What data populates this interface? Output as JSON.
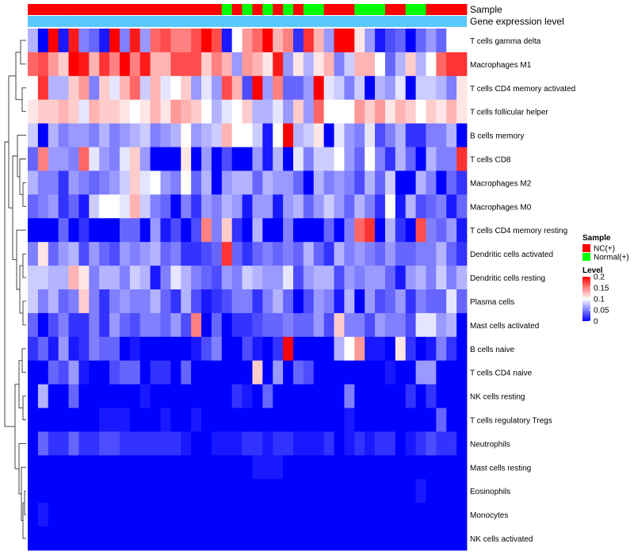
{
  "chart_data": {
    "type": "heatmap",
    "title": "",
    "annotation_tracks": [
      {
        "label": "Sample",
        "values": [
          "NC(+)",
          "NC(+)",
          "NC(+)",
          "NC(+)",
          "NC(+)",
          "NC(+)",
          "NC(+)",
          "NC(+)",
          "NC(+)",
          "NC(+)",
          "NC(+)",
          "NC(+)",
          "NC(+)",
          "NC(+)",
          "NC(+)",
          "NC(+)",
          "NC(+)",
          "NC(+)",
          "NC(+)",
          "Normal(+)",
          "NC(+)",
          "Normal(+)",
          "NC(+)",
          "Normal(+)",
          "NC(+)",
          "Normal(+)",
          "NC(+)",
          "Normal(+)",
          "Normal(+)",
          "NC(+)",
          "NC(+)",
          "NC(+)",
          "Normal(+)",
          "Normal(+)",
          "Normal(+)",
          "NC(+)",
          "NC(+)",
          "Normal(+)",
          "Normal(+)",
          "NC(+)",
          "NC(+)",
          "NC(+)",
          "NC(+)"
        ]
      },
      {
        "label": "Gene expression level",
        "values": "uniform"
      }
    ],
    "rows": [
      "T cells gamma delta",
      "Macrophages M1",
      "T cells CD4 memory activated",
      "T cells follicular helper",
      "B cells memory",
      "T cells CD8",
      "Macrophages M2",
      "Macrophages M0",
      "T cells CD4 memory resting",
      "Dendritic cells activated",
      "Dendritic cells resting",
      "Plasma cells",
      "Mast cells activated",
      "B cells naive",
      "T cells CD4 naive",
      "NK cells resting",
      "T cells regulatory  Tregs",
      "Neutrophils",
      "Mast cells resting",
      "Eosinophils",
      "Monocytes",
      "NK cells activated"
    ],
    "n_columns": 43,
    "values": [
      [
        0.07,
        0.0,
        0.2,
        0.01,
        0.19,
        0.05,
        0.04,
        0.01,
        0.2,
        0.05,
        0.19,
        0.06,
        0.16,
        0.17,
        0.15,
        0.15,
        0.17,
        0.2,
        0.17,
        0.01,
        0.1,
        0.14,
        0.16,
        0.2,
        0.13,
        0.15,
        0.02,
        0.18,
        0.13,
        0.06,
        0.2,
        0.2,
        0.11,
        0.06,
        0.01,
        0.03,
        0.04,
        0.0,
        0.04,
        0.06,
        0.04,
        0.1,
        0.1
      ],
      [
        0.16,
        0.17,
        0.14,
        0.12,
        0.2,
        0.19,
        0.13,
        0.18,
        0.15,
        0.2,
        0.15,
        0.19,
        0.13,
        0.13,
        0.17,
        0.17,
        0.17,
        0.12,
        0.15,
        0.13,
        0.06,
        0.14,
        0.13,
        0.11,
        0.19,
        0.06,
        0.11,
        0.07,
        0.11,
        0.13,
        0.05,
        0.08,
        0.13,
        0.13,
        0.1,
        0.04,
        0.07,
        0.12,
        0.07,
        0.1,
        0.16,
        0.18,
        0.18
      ],
      [
        0.1,
        0.18,
        0.07,
        0.07,
        0.12,
        0.14,
        0.05,
        0.12,
        0.09,
        0.13,
        0.16,
        0.08,
        0.13,
        0.09,
        0.1,
        0.12,
        0.06,
        0.09,
        0.06,
        0.17,
        0.13,
        0.03,
        0.2,
        0.06,
        0.15,
        0.04,
        0.04,
        0.06,
        0.2,
        0.09,
        0.08,
        0.05,
        0.08,
        0.0,
        0.07,
        0.06,
        0.09,
        0.0,
        0.08,
        0.08,
        0.07,
        0.05,
        0.11
      ],
      [
        0.11,
        0.12,
        0.12,
        0.13,
        0.12,
        0.09,
        0.13,
        0.12,
        0.12,
        0.11,
        0.1,
        0.11,
        0.13,
        0.11,
        0.14,
        0.13,
        0.12,
        0.1,
        0.07,
        0.09,
        0.1,
        0.12,
        0.07,
        0.07,
        0.09,
        0.06,
        0.12,
        0.06,
        0.16,
        0.1,
        0.1,
        0.1,
        0.14,
        0.12,
        0.14,
        0.11,
        0.13,
        0.12,
        0.1,
        0.12,
        0.11,
        0.13,
        0.11
      ],
      [
        0.08,
        0.0,
        0.07,
        0.05,
        0.06,
        0.06,
        0.05,
        0.07,
        0.05,
        0.06,
        0.07,
        0.08,
        0.05,
        0.06,
        0.07,
        0.1,
        0.06,
        0.07,
        0.08,
        0.13,
        0.1,
        0.1,
        0.08,
        0.01,
        0.1,
        0.2,
        0.07,
        0.08,
        0.11,
        0.0,
        0.09,
        0.06,
        0.05,
        0.09,
        0.03,
        0.05,
        0.07,
        0.02,
        0.02,
        0.05,
        0.05,
        0.07,
        0.0
      ],
      [
        0.04,
        0.15,
        0.06,
        0.06,
        0.05,
        0.16,
        0.09,
        0.06,
        0.05,
        0.09,
        0.12,
        0.06,
        0.0,
        0.0,
        0.0,
        0.11,
        0.0,
        0.06,
        0.0,
        0.03,
        0.0,
        0.0,
        0.06,
        0.01,
        0.07,
        0.0,
        0.09,
        0.05,
        0.08,
        0.08,
        0.1,
        0.06,
        0.04,
        0.1,
        0.05,
        0.02,
        0.07,
        0.04,
        0.0,
        0.07,
        0.05,
        0.05,
        0.18
      ],
      [
        0.07,
        0.05,
        0.05,
        0.02,
        0.06,
        0.05,
        0.04,
        0.05,
        0.06,
        0.08,
        0.12,
        0.09,
        0.1,
        0.06,
        0.05,
        0.1,
        0.04,
        0.07,
        0.0,
        0.06,
        0.07,
        0.07,
        0.04,
        0.07,
        0.06,
        0.06,
        0.04,
        0.0,
        0.07,
        0.05,
        0.06,
        0.05,
        0.03,
        0.07,
        0.04,
        0.08,
        0.0,
        0.0,
        0.07,
        0.05,
        0.0,
        0.04,
        0.02
      ],
      [
        0.04,
        0.05,
        0.06,
        0.02,
        0.04,
        0.01,
        0.08,
        0.1,
        0.1,
        0.09,
        0.13,
        0.08,
        0.05,
        0.04,
        0.0,
        0.05,
        0.02,
        0.06,
        0.05,
        0.07,
        0.06,
        0.01,
        0.06,
        0.06,
        0.01,
        0.06,
        0.07,
        0.04,
        0.06,
        0.08,
        0.06,
        0.04,
        0.07,
        0.05,
        0.02,
        0.1,
        0.01,
        0.07,
        0.03,
        0.04,
        0.05,
        0.01,
        0.04
      ],
      [
        0.0,
        0.0,
        0.0,
        0.04,
        0.0,
        0.02,
        0.0,
        0.0,
        0.0,
        0.04,
        0.04,
        0.0,
        0.06,
        0.01,
        0.03,
        0.0,
        0.03,
        0.15,
        0.05,
        0.12,
        0.02,
        0.0,
        0.07,
        0.0,
        0.0,
        0.05,
        0.0,
        0.0,
        0.0,
        0.04,
        0.0,
        0.05,
        0.16,
        0.18,
        0.0,
        0.07,
        0.02,
        0.0,
        0.17,
        0.05,
        0.04,
        0.06,
        0.01
      ],
      [
        0.05,
        0.11,
        0.04,
        0.06,
        0.07,
        0.03,
        0.06,
        0.04,
        0.03,
        0.06,
        0.05,
        0.06,
        0.07,
        0.04,
        0.05,
        0.02,
        0.02,
        0.03,
        0.04,
        0.18,
        0.04,
        0.02,
        0.04,
        0.05,
        0.04,
        0.05,
        0.04,
        0.07,
        0.04,
        0.02,
        0.07,
        0.05,
        0.06,
        0.05,
        0.04,
        0.06,
        0.04,
        0.04,
        0.05,
        0.05,
        0.07,
        0.04,
        0.02
      ],
      [
        0.08,
        0.08,
        0.07,
        0.07,
        0.13,
        0.11,
        0.05,
        0.07,
        0.07,
        0.05,
        0.08,
        0.07,
        0.01,
        0.05,
        0.09,
        0.07,
        0.05,
        0.04,
        0.03,
        0.06,
        0.05,
        0.08,
        0.07,
        0.06,
        0.06,
        0.09,
        0.03,
        0.06,
        0.07,
        0.07,
        0.03,
        0.06,
        0.05,
        0.06,
        0.06,
        0.04,
        0.01,
        0.06,
        0.07,
        0.05,
        0.08,
        0.05,
        0.07
      ],
      [
        0.08,
        0.05,
        0.07,
        0.04,
        0.05,
        0.12,
        0.05,
        0.02,
        0.05,
        0.06,
        0.05,
        0.05,
        0.07,
        0.04,
        0.02,
        0.07,
        0.03,
        0.01,
        0.02,
        0.03,
        0.05,
        0.05,
        0.02,
        0.05,
        0.07,
        0.04,
        0.0,
        0.03,
        0.06,
        0.05,
        0.01,
        0.07,
        0.0,
        0.06,
        0.03,
        0.04,
        0.06,
        0.02,
        0.05,
        0.04,
        0.04,
        0.09,
        0.04
      ],
      [
        0.04,
        0.0,
        0.03,
        0.05,
        0.02,
        0.02,
        0.05,
        0.02,
        0.06,
        0.04,
        0.03,
        0.05,
        0.05,
        0.04,
        0.06,
        0.03,
        0.15,
        0.0,
        0.04,
        0.0,
        0.02,
        0.02,
        0.03,
        0.04,
        0.04,
        0.05,
        0.04,
        0.04,
        0.06,
        0.03,
        0.12,
        0.05,
        0.05,
        0.03,
        0.06,
        0.05,
        0.05,
        0.03,
        0.09,
        0.09,
        0.06,
        0.07,
        0.0
      ],
      [
        0.02,
        0.04,
        0.01,
        0.06,
        0.01,
        0.02,
        0.05,
        0.04,
        0.04,
        0.0,
        0.01,
        0.0,
        0.0,
        0.0,
        0.0,
        0.0,
        0.01,
        0.03,
        0.05,
        0.0,
        0.0,
        0.03,
        0.01,
        0.0,
        0.02,
        0.2,
        0.0,
        0.0,
        0.0,
        0.0,
        0.07,
        0.1,
        0.14,
        0.01,
        0.01,
        0.0,
        0.11,
        0.02,
        0.0,
        0.01,
        0.05,
        0.02,
        0.0
      ],
      [
        0.0,
        0.0,
        0.04,
        0.03,
        0.06,
        0.01,
        0.0,
        0.0,
        0.03,
        0.04,
        0.04,
        0.0,
        0.02,
        0.02,
        0.0,
        0.04,
        0.0,
        0.0,
        0.0,
        0.0,
        0.0,
        0.0,
        0.12,
        0.0,
        0.06,
        0.0,
        0.04,
        0.03,
        0.0,
        0.0,
        0.0,
        0.0,
        0.0,
        0.0,
        0.0,
        0.01,
        0.0,
        0.0,
        0.06,
        0.06,
        0.0,
        0.0,
        0.0
      ],
      [
        0.0,
        0.07,
        0.0,
        0.0,
        0.04,
        0.0,
        0.0,
        0.0,
        0.0,
        0.0,
        0.0,
        0.01,
        0.0,
        0.0,
        0.0,
        0.0,
        0.0,
        0.0,
        0.0,
        0.0,
        0.02,
        0.01,
        0.0,
        0.04,
        0.0,
        0.0,
        0.0,
        0.0,
        0.0,
        0.0,
        0.0,
        0.05,
        0.0,
        0.0,
        0.0,
        0.0,
        0.0,
        0.02,
        0.0,
        0.02,
        0.0,
        0.0,
        0.0
      ],
      [
        0.0,
        0.0,
        0.0,
        0.0,
        0.0,
        0.0,
        0.0,
        0.01,
        0.01,
        0.01,
        0.0,
        0.0,
        0.0,
        0.01,
        0.0,
        0.0,
        0.01,
        0.0,
        0.0,
        0.0,
        0.0,
        0.0,
        0.0,
        0.0,
        0.0,
        0.0,
        0.0,
        0.0,
        0.0,
        0.0,
        0.0,
        0.01,
        0.0,
        0.0,
        0.0,
        0.0,
        0.0,
        0.0,
        0.0,
        0.0,
        0.04,
        0.0,
        0.0
      ],
      [
        0.0,
        0.04,
        0.02,
        0.02,
        0.04,
        0.02,
        0.02,
        0.03,
        0.03,
        0.02,
        0.02,
        0.02,
        0.02,
        0.02,
        0.02,
        0.01,
        0.0,
        0.0,
        0.01,
        0.01,
        0.01,
        0.02,
        0.02,
        0.01,
        0.02,
        0.02,
        0.01,
        0.01,
        0.01,
        0.02,
        0.0,
        0.01,
        0.02,
        0.01,
        0.02,
        0.02,
        0.0,
        0.01,
        0.02,
        0.03,
        0.02,
        0.02,
        0.0
      ],
      [
        0.0,
        0.0,
        0.0,
        0.0,
        0.0,
        0.0,
        0.0,
        0.0,
        0.0,
        0.0,
        0.0,
        0.0,
        0.0,
        0.0,
        0.0,
        0.0,
        0.0,
        0.0,
        0.0,
        0.0,
        0.0,
        0.0,
        0.01,
        0.01,
        0.01,
        0.0,
        0.0,
        0.0,
        0.0,
        0.0,
        0.0,
        0.0,
        0.0,
        0.0,
        0.0,
        0.0,
        0.0,
        0.0,
        0.0,
        0.0,
        0.0,
        0.0,
        0.0
      ],
      [
        0.0,
        0.0,
        0.0,
        0.0,
        0.0,
        0.0,
        0.0,
        0.0,
        0.0,
        0.0,
        0.0,
        0.0,
        0.0,
        0.0,
        0.0,
        0.0,
        0.0,
        0.0,
        0.0,
        0.0,
        0.0,
        0.0,
        0.0,
        0.0,
        0.0,
        0.0,
        0.0,
        0.0,
        0.0,
        0.0,
        0.0,
        0.0,
        0.0,
        0.0,
        0.0,
        0.0,
        0.0,
        0.0,
        0.01,
        0.0,
        0.0,
        0.0,
        0.0
      ],
      [
        0.0,
        0.01,
        0.0,
        0.0,
        0.0,
        0.0,
        0.0,
        0.0,
        0.0,
        0.0,
        0.0,
        0.0,
        0.0,
        0.0,
        0.0,
        0.0,
        0.0,
        0.0,
        0.0,
        0.0,
        0.0,
        0.0,
        0.0,
        0.0,
        0.0,
        0.0,
        0.0,
        0.0,
        0.0,
        0.0,
        0.0,
        0.0,
        0.0,
        0.0,
        0.0,
        0.0,
        0.0,
        0.0,
        0.0,
        0.0,
        0.0,
        0.0,
        0.0
      ],
      [
        0.0,
        0.0,
        0.0,
        0.0,
        0.0,
        0.0,
        0.0,
        0.0,
        0.0,
        0.0,
        0.0,
        0.0,
        0.0,
        0.0,
        0.0,
        0.0,
        0.0,
        0.0,
        0.0,
        0.0,
        0.0,
        0.0,
        0.0,
        0.0,
        0.0,
        0.0,
        0.0,
        0.0,
        0.0,
        0.0,
        0.0,
        0.0,
        0.0,
        0.0,
        0.0,
        0.0,
        0.0,
        0.0,
        0.0,
        0.0,
        0.0,
        0.0,
        0.0
      ]
    ],
    "value_range": [
      0,
      0.2
    ],
    "legend": {
      "sample_title": "Sample",
      "sample_items": [
        {
          "label": "NC(+)",
          "color": "#ff0000"
        },
        {
          "label": "Normal(+)",
          "color": "#00ff00"
        }
      ],
      "level_title": "Level",
      "level_ticks": [
        0.2,
        0.15,
        0.1,
        0.05,
        0
      ],
      "placement": "right"
    },
    "colors": {
      "low": "#0000ff",
      "mid": "#ffffff",
      "high": "#ff0000",
      "gene_track": "#5ac8fa",
      "dendrogram": "#333333"
    }
  }
}
